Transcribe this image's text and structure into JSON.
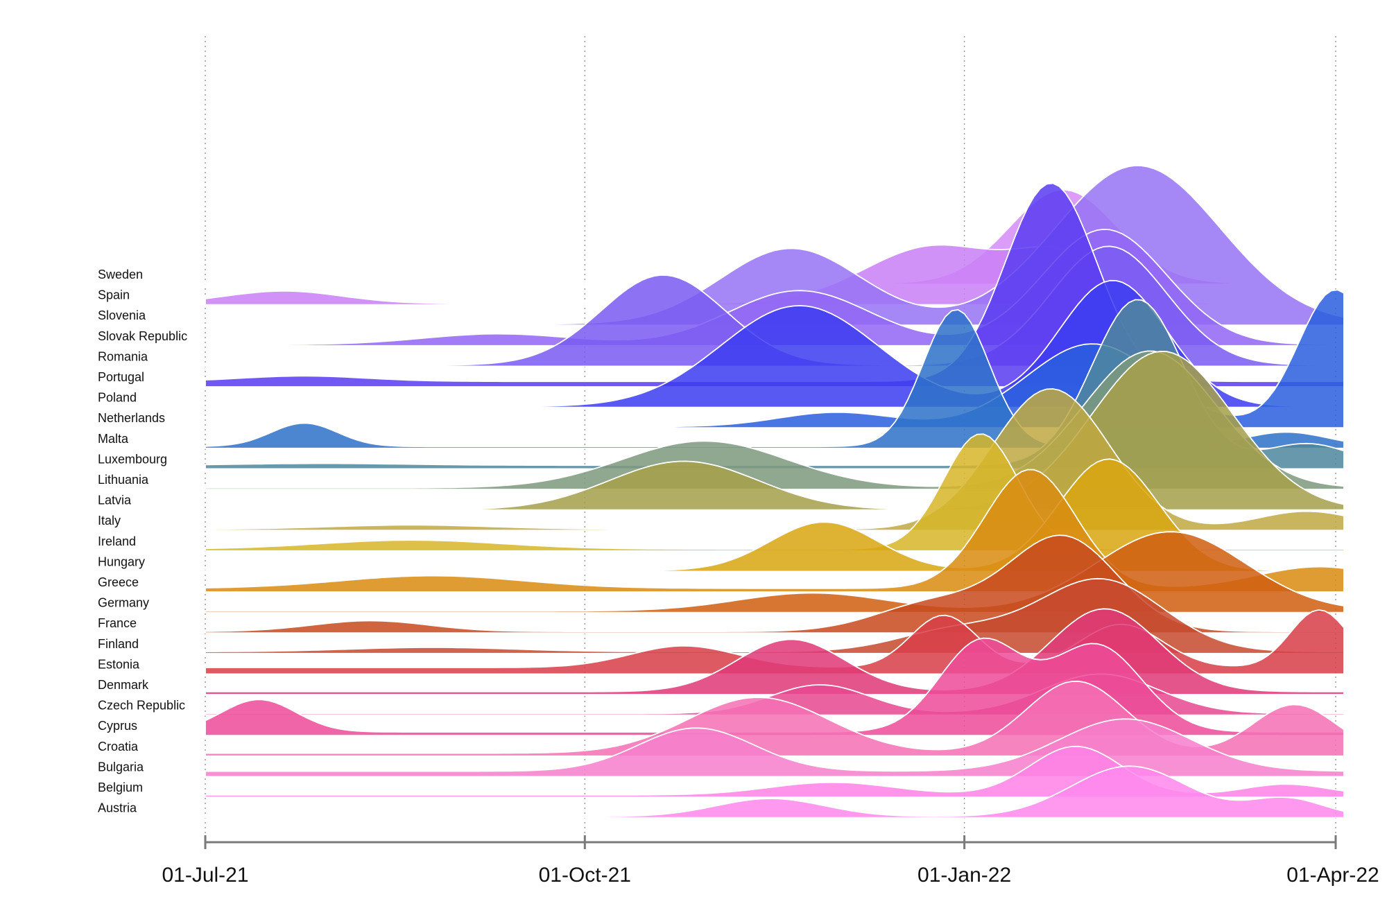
{
  "chart_data": {
    "type": "area",
    "subtype": "ridgeline",
    "title": "",
    "xlabel": "",
    "ylabel": "",
    "x_ticks": [
      "01-Jul-21",
      "01-Oct-21",
      "01-Jan-22",
      "01-Apr-22"
    ],
    "x_tick_dates": [
      "2021-07-01",
      "2021-10-01",
      "2022-01-01",
      "2022-04-01"
    ],
    "xlim": [
      "2021-07-01",
      "2022-04-03"
    ],
    "grid": "vertical dotted at ticks",
    "legend": "none",
    "series": [
      {
        "name": "Austria",
        "color": "#ff88ee",
        "peaks": [
          {
            "date": "2021-11-15",
            "height": 0.5,
            "width": 13
          },
          {
            "date": "2022-02-10",
            "height": 1.4,
            "width": 14
          },
          {
            "date": "2022-03-20",
            "height": 0.5,
            "width": 9
          }
        ],
        "base": 0.03
      },
      {
        "name": "Belgium",
        "color": "#ff82e6",
        "peaks": [
          {
            "date": "2021-11-30",
            "height": 0.35,
            "width": 15
          },
          {
            "date": "2022-01-28",
            "height": 1.35,
            "width": 11
          },
          {
            "date": "2022-03-20",
            "height": 0.3,
            "width": 10
          }
        ],
        "base": 0.06
      },
      {
        "name": "Bulgaria",
        "color": "#f77fcc",
        "peaks": [
          {
            "date": "2021-10-28",
            "height": 1.2,
            "width": 14
          },
          {
            "date": "2022-02-09",
            "height": 1.45,
            "width": 16
          }
        ],
        "base": 0.15
      },
      {
        "name": "Croatia",
        "color": "#f470b4",
        "peaks": [
          {
            "date": "2021-11-12",
            "height": 1.55,
            "width": 17
          },
          {
            "date": "2022-01-28",
            "height": 2.0,
            "width": 12
          },
          {
            "date": "2022-03-22",
            "height": 1.35,
            "width": 10
          }
        ],
        "base": 0.08
      },
      {
        "name": "Cyprus",
        "color": "#ec4c98",
        "peaks": [
          {
            "date": "2021-07-14",
            "height": 0.9,
            "width": 9
          },
          {
            "date": "2022-01-05",
            "height": 2.5,
            "width": 10
          },
          {
            "date": "2022-02-02",
            "height": 2.4,
            "width": 11
          }
        ],
        "base": 0.1
      },
      {
        "name": "Czech Republic",
        "color": "#e84890",
        "peaks": [
          {
            "date": "2021-11-27",
            "height": 0.8,
            "width": 12
          },
          {
            "date": "2022-02-03",
            "height": 1.1,
            "width": 14
          }
        ],
        "base": 0.04
      },
      {
        "name": "Denmark",
        "color": "#e03a78",
        "peaks": [
          {
            "date": "2021-11-20",
            "height": 1.45,
            "width": 13
          },
          {
            "date": "2022-02-04",
            "height": 2.3,
            "width": 13
          }
        ],
        "base": 0.08
      },
      {
        "name": "Estonia",
        "color": "#d93f48",
        "peaks": [
          {
            "date": "2021-10-25",
            "height": 0.6,
            "width": 13
          },
          {
            "date": "2021-12-27",
            "height": 1.45,
            "width": 8
          },
          {
            "date": "2022-02-08",
            "height": 1.2,
            "width": 10
          },
          {
            "date": "2022-03-28",
            "height": 1.6,
            "width": 7
          }
        ],
        "base": 0.18
      },
      {
        "name": "Finland",
        "color": "#c74a30",
        "peaks": [
          {
            "date": "2021-08-25",
            "height": 0.12,
            "width": 20
          },
          {
            "date": "2021-12-30",
            "height": 0.6,
            "width": 14
          },
          {
            "date": "2022-02-03",
            "height": 2.0,
            "width": 15
          }
        ],
        "base": 0.05
      },
      {
        "name": "France",
        "color": "#c74a1e",
        "peaks": [
          {
            "date": "2021-08-10",
            "height": 0.3,
            "width": 14
          },
          {
            "date": "2021-12-25",
            "height": 0.8,
            "width": 14
          },
          {
            "date": "2022-01-25",
            "height": 2.6,
            "width": 13
          }
        ],
        "base": 0.04
      },
      {
        "name": "Germany",
        "color": "#cf6010",
        "peaks": [
          {
            "date": "2021-11-25",
            "height": 0.5,
            "width": 18
          },
          {
            "date": "2022-02-20",
            "height": 2.2,
            "width": 18
          }
        ],
        "base": 0.04
      },
      {
        "name": "Greece",
        "color": "#d98c12",
        "peaks": [
          {
            "date": "2021-08-25",
            "height": 0.35,
            "width": 22
          },
          {
            "date": "2022-01-17",
            "height": 3.3,
            "width": 11
          },
          {
            "date": "2022-03-28",
            "height": 0.6,
            "width": 15
          }
        ],
        "base": 0.1
      },
      {
        "name": "Hungary",
        "color": "#d9a512",
        "peaks": [
          {
            "date": "2021-11-28",
            "height": 1.35,
            "width": 13
          },
          {
            "date": "2022-02-05",
            "height": 3.1,
            "width": 12
          }
        ],
        "base": 0.02
      },
      {
        "name": "Ireland",
        "color": "#d6b62a",
        "peaks": [
          {
            "date": "2021-08-20",
            "height": 0.25,
            "width": 22
          },
          {
            "date": "2022-01-05",
            "height": 3.2,
            "width": 9
          }
        ],
        "base": 0.05
      },
      {
        "name": "Italy",
        "color": "#bfa942",
        "peaks": [
          {
            "date": "2021-08-20",
            "height": 0.12,
            "width": 20
          },
          {
            "date": "2022-01-22",
            "height": 3.9,
            "width": 14
          },
          {
            "date": "2022-03-25",
            "height": 0.5,
            "width": 12
          }
        ],
        "base": 0.03
      },
      {
        "name": "Latvia",
        "color": "#a5a04a",
        "peaks": [
          {
            "date": "2021-10-25",
            "height": 1.35,
            "width": 18
          },
          {
            "date": "2022-02-18",
            "height": 4.4,
            "width": 17
          }
        ],
        "base": 0.0
      },
      {
        "name": "Lithuania",
        "color": "#7e9a7e",
        "peaks": [
          {
            "date": "2021-10-30",
            "height": 1.3,
            "width": 20
          },
          {
            "date": "2022-02-15",
            "height": 3.8,
            "width": 16
          }
        ],
        "base": 0.04
      },
      {
        "name": "Luxembourg",
        "color": "#4f879e",
        "peaks": [
          {
            "date": "2021-07-30",
            "height": 0.05,
            "width": 20
          },
          {
            "date": "2022-02-12",
            "height": 4.6,
            "width": 11
          },
          {
            "date": "2022-03-25",
            "height": 0.6,
            "width": 10
          }
        ],
        "base": 0.1
      },
      {
        "name": "Malta",
        "color": "#2f72c9",
        "peaks": [
          {
            "date": "2021-07-25",
            "height": 0.65,
            "width": 8
          },
          {
            "date": "2021-12-30",
            "height": 3.8,
            "width": 8
          },
          {
            "date": "2022-03-20",
            "height": 0.4,
            "width": 10
          }
        ],
        "base": 0.05
      },
      {
        "name": "Netherlands",
        "color": "#2b5fde",
        "peaks": [
          {
            "date": "2021-12-01",
            "height": 0.4,
            "width": 14
          },
          {
            "date": "2022-02-01",
            "height": 2.3,
            "width": 16
          },
          {
            "date": "2022-04-01",
            "height": 3.8,
            "width": 9
          }
        ],
        "base": 0.03
      },
      {
        "name": "Poland",
        "color": "#3d3df0",
        "peaks": [
          {
            "date": "2021-11-22",
            "height": 2.8,
            "width": 19
          },
          {
            "date": "2022-02-06",
            "height": 3.5,
            "width": 13
          }
        ],
        "base": 0.02
      },
      {
        "name": "Portugal",
        "color": "#5b3cf0",
        "peaks": [
          {
            "date": "2021-07-25",
            "height": 0.15,
            "width": 15
          },
          {
            "date": "2022-01-22",
            "height": 5.5,
            "width": 11
          }
        ],
        "base": 0.15
      },
      {
        "name": "Romania",
        "color": "#7a5cf2",
        "peaks": [
          {
            "date": "2021-10-20",
            "height": 2.5,
            "width": 15
          },
          {
            "date": "2022-02-05",
            "height": 3.3,
            "width": 14
          }
        ],
        "base": 0.03
      },
      {
        "name": "Slovak Republic",
        "color": "#9267f4",
        "peaks": [
          {
            "date": "2021-09-10",
            "height": 0.3,
            "width": 18
          },
          {
            "date": "2021-11-22",
            "height": 1.5,
            "width": 17
          },
          {
            "date": "2022-02-04",
            "height": 3.2,
            "width": 15
          }
        ],
        "base": 0.03
      },
      {
        "name": "Slovenia",
        "color": "#9773f4",
        "peaks": [
          {
            "date": "2021-11-20",
            "height": 2.1,
            "width": 17
          },
          {
            "date": "2022-02-12",
            "height": 4.4,
            "width": 20
          }
        ],
        "base": 0.03
      },
      {
        "name": "Spain",
        "color": "#c980f7",
        "peaks": [
          {
            "date": "2021-07-20",
            "height": 0.35,
            "width": 14
          },
          {
            "date": "2021-12-25",
            "height": 1.6,
            "width": 17
          },
          {
            "date": "2022-01-25",
            "height": 1.2,
            "width": 11
          }
        ],
        "base": 0.03
      },
      {
        "name": "Sweden",
        "color": "#d68df8",
        "peaks": [
          {
            "date": "2022-01-25",
            "height": 2.6,
            "width": 13
          }
        ],
        "base": 0.02
      }
    ]
  }
}
